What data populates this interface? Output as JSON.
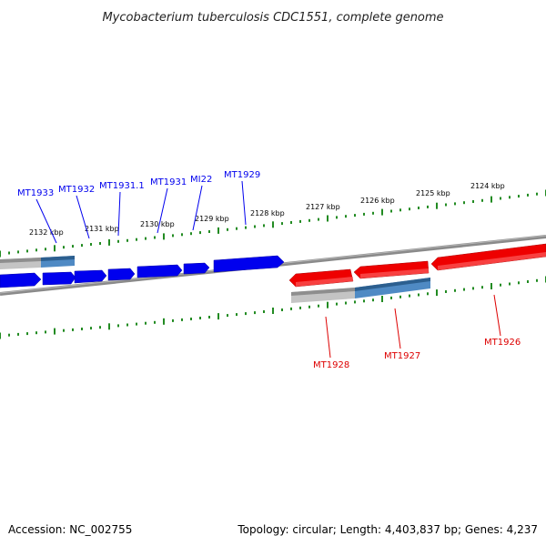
{
  "title": "Mycobacterium tuberculosis CDC1551, complete genome",
  "footer": {
    "accession": "Accession: NC_002755",
    "summary": "Topology: circular; Length: 4,403,837 bp; Genes: 4,237"
  },
  "colors": {
    "forward_gene": "#0000ee",
    "reverse_gene": "#ee0000",
    "backbone": "#808080",
    "tick": "#228b22",
    "cds_blue": "#4682b4",
    "cds_gray": "#c0c0c0"
  },
  "ticks": [
    {
      "label": "2132 kbp"
    },
    {
      "label": "2131 kbp"
    },
    {
      "label": "2130 kbp"
    },
    {
      "label": "2129 kbp"
    },
    {
      "label": "2128 kbp"
    },
    {
      "label": "2127 kbp"
    },
    {
      "label": "2126 kbp"
    },
    {
      "label": "2125 kbp"
    },
    {
      "label": "2124 kbp"
    }
  ],
  "forward_labels": [
    {
      "label": "MT1933"
    },
    {
      "label": "MT1932"
    },
    {
      "label": "MT1931.1"
    },
    {
      "label": "MT1931"
    },
    {
      "label": "MI22"
    },
    {
      "label": "MT1929"
    }
  ],
  "reverse_labels": [
    {
      "label": "MT1928"
    },
    {
      "label": "MT1927"
    },
    {
      "label": "MT1926"
    }
  ]
}
